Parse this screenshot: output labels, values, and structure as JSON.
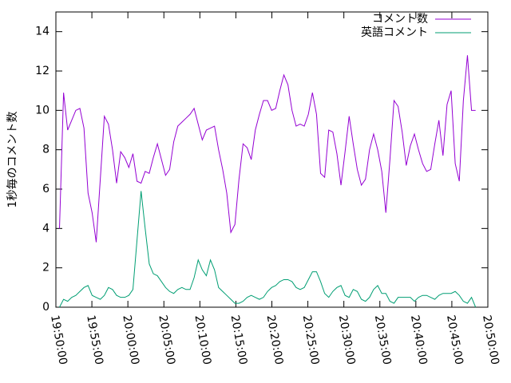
{
  "chart_data": {
    "type": "line",
    "y_label": "1秒毎のコメント数",
    "x": [
      "19:50:30",
      "19:51:04",
      "19:51:38",
      "19:52:12",
      "19:52:46",
      "19:53:20",
      "19:53:54",
      "19:54:28",
      "19:55:02",
      "19:55:36",
      "19:56:10",
      "19:56:44",
      "19:57:18",
      "19:57:52",
      "19:58:26",
      "19:59:00",
      "19:59:34",
      "20:00:08",
      "20:00:42",
      "20:01:16",
      "20:01:50",
      "20:02:24",
      "20:02:58",
      "20:03:32",
      "20:04:06",
      "20:04:40",
      "20:05:14",
      "20:05:48",
      "20:06:22",
      "20:06:56",
      "20:07:30",
      "20:08:04",
      "20:08:38",
      "20:09:12",
      "20:09:46",
      "20:10:20",
      "20:10:54",
      "20:11:28",
      "20:12:02",
      "20:12:36",
      "20:13:10",
      "20:13:44",
      "20:14:18",
      "20:14:52",
      "20:15:26",
      "20:16:00",
      "20:16:34",
      "20:17:08",
      "20:17:42",
      "20:18:16",
      "20:18:50",
      "20:19:24",
      "20:19:58",
      "20:20:32",
      "20:21:06",
      "20:21:40",
      "20:22:14",
      "20:22:48",
      "20:23:22",
      "20:23:56",
      "20:24:30",
      "20:25:04",
      "20:25:38",
      "20:26:12",
      "20:26:46",
      "20:27:20",
      "20:27:54",
      "20:28:28",
      "20:29:02",
      "20:29:36",
      "20:30:10",
      "20:30:44",
      "20:31:18",
      "20:31:52",
      "20:32:26",
      "20:33:00",
      "20:33:34",
      "20:34:08",
      "20:34:42",
      "20:35:16",
      "20:35:50",
      "20:36:24",
      "20:36:58",
      "20:37:32",
      "20:38:06",
      "20:38:40",
      "20:39:14",
      "20:39:48",
      "20:40:22",
      "20:40:56",
      "20:41:30",
      "20:42:04",
      "20:42:38",
      "20:43:12",
      "20:43:46",
      "20:44:20",
      "20:44:54",
      "20:45:28",
      "20:46:02",
      "20:46:36",
      "20:47:10",
      "20:47:44",
      "20:48:18"
    ],
    "series": [
      {
        "name": "コメント数",
        "color": "#9400d3",
        "values": [
          4,
          10.9,
          9,
          9.5,
          10,
          10.1,
          9.1,
          5.8,
          4.8,
          3.3,
          6.5,
          9.7,
          9.3,
          8,
          6.3,
          7.9,
          7.6,
          7.1,
          7.8,
          6.4,
          6.3,
          6.9,
          6.8,
          7.6,
          8.3,
          7.5,
          6.7,
          7,
          8.4,
          9.2,
          9.4,
          9.6,
          9.8,
          10.1,
          9.3,
          8.5,
          9,
          9.1,
          9.2,
          8,
          7,
          5.8,
          3.8,
          4.2,
          6.5,
          8.3,
          8.1,
          7.5,
          9,
          9.8,
          10.5,
          10.5,
          10,
          10.1,
          11,
          11.8,
          11.3,
          10,
          9.2,
          9.3,
          9.2,
          9.8,
          10.9,
          9.8,
          6.8,
          6.6,
          9,
          8.9,
          7.8,
          6.2,
          7.9,
          9.7,
          8.3,
          7,
          6.2,
          6.5,
          8,
          8.8,
          8,
          6.9,
          4.8,
          7.5,
          10.5,
          10.2,
          8.9,
          7.2,
          8.2,
          8.8,
          8,
          7.3,
          6.9,
          7,
          8.3,
          9.5,
          7.7,
          10.3,
          11,
          7.3,
          6.4,
          10.5,
          12.8,
          10,
          10
        ]
      },
      {
        "name": "英語コメント",
        "color": "#009e73",
        "values": [
          0,
          0.4,
          0.3,
          0.5,
          0.6,
          0.8,
          1.0,
          1.1,
          0.6,
          0.5,
          0.4,
          0.6,
          1.0,
          0.9,
          0.6,
          0.5,
          0.5,
          0.6,
          0.9,
          3.4,
          5.9,
          4.0,
          2.2,
          1.7,
          1.6,
          1.3,
          1.0,
          0.8,
          0.7,
          0.9,
          1.0,
          0.9,
          0.9,
          1.5,
          2.4,
          1.9,
          1.6,
          2.4,
          1.9,
          1.0,
          0.8,
          0.6,
          0.4,
          0.2,
          0.2,
          0.3,
          0.5,
          0.6,
          0.5,
          0.4,
          0.5,
          0.8,
          1.0,
          1.1,
          1.3,
          1.4,
          1.4,
          1.3,
          1.0,
          0.9,
          1.0,
          1.4,
          1.8,
          1.8,
          1.3,
          0.7,
          0.5,
          0.8,
          1.0,
          1.1,
          0.6,
          0.5,
          0.9,
          0.8,
          0.4,
          0.3,
          0.5,
          0.9,
          1.1,
          0.7,
          0.7,
          0.3,
          0.2,
          0.5,
          0.5,
          0.5,
          0.5,
          0.3,
          0.5,
          0.6,
          0.6,
          0.5,
          0.4,
          0.6,
          0.7,
          0.7,
          0.7,
          0.8,
          0.6,
          0.3,
          0.2,
          0.5,
          0
        ]
      }
    ],
    "xlim": [
      "19:50:00",
      "20:50:00"
    ],
    "xticks": [
      "19:50:00",
      "19:55:00",
      "20:00:00",
      "20:05:00",
      "20:10:00",
      "20:15:00",
      "20:20:00",
      "20:25:00",
      "20:30:00",
      "20:35:00",
      "20:40:00",
      "20:45:00",
      "20:50:00"
    ],
    "ylim": [
      0,
      15
    ],
    "yticks": [
      0,
      2,
      4,
      6,
      8,
      10,
      12,
      14
    ],
    "legend": "top-right"
  }
}
